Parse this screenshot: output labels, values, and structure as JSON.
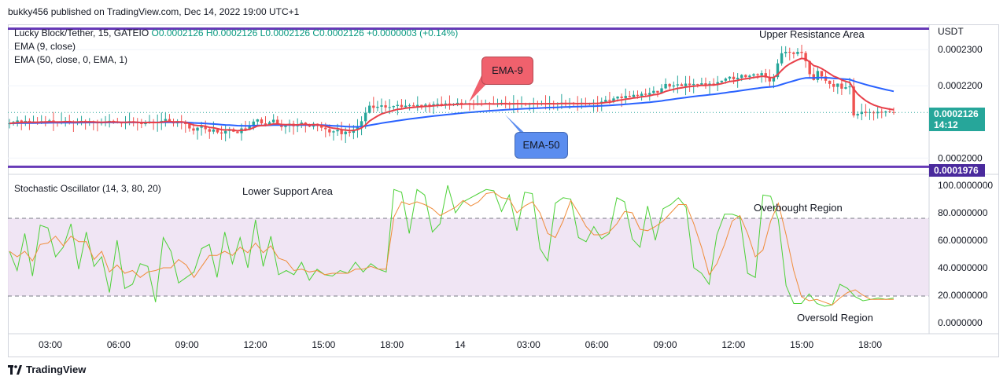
{
  "header": {
    "publisher_line": "bukky456 published on TradingView.com, Dec 14, 2022 19:00 UTC+1"
  },
  "legend": {
    "symbol": "Lucky Block/Tether, 15, GATEIO",
    "ohlc": "O0.0002126  H0.0002126  L0.0002126  C0.0002126  +0.0000003 (+0.14%)",
    "ema9": "EMA (9, close)",
    "ema50": "EMA (50, close, 0, EMA, 1)",
    "oscillator": "Stochastic Oscillator (14, 3, 80, 20)"
  },
  "price_axis": {
    "currency": "USDT",
    "ticks": [
      "0.0002300",
      "0.0002200",
      "0.0002000"
    ],
    "ticks_values": [
      0.00023,
      0.00022,
      0.0002
    ],
    "last_price": "0.0002126",
    "countdown": "14:12",
    "support_level": "0.0001976"
  },
  "osc_axis": {
    "ticks": [
      "100.0000000",
      "80.0000000",
      "60.0000000",
      "40.0000000",
      "20.0000000",
      "0.0000000"
    ],
    "ticks_values": [
      100,
      80,
      60,
      40,
      20,
      0
    ]
  },
  "time_axis": {
    "labels": [
      "03:00",
      "06:00",
      "09:00",
      "12:00",
      "15:00",
      "18:00",
      "14",
      "03:00",
      "06:00",
      "09:00",
      "12:00",
      "15:00",
      "18:00"
    ]
  },
  "annotations": {
    "upper": "Upper Resistance Area",
    "lower": "Lower Support Area",
    "overbought": "Overbought Region",
    "oversold": "Oversold Region",
    "ema9_callout": "EMA-9",
    "ema50_callout": "EMA-50"
  },
  "footer": {
    "brand": "TradingView"
  },
  "colors": {
    "up": "#26a69a",
    "down": "#ef5350",
    "ema9": "#e8404a",
    "ema50": "#2962ff",
    "level": "#673ab7",
    "stoch_k": "#4cd137",
    "stoch_d": "#f08c3a",
    "band": "#ede0f2"
  },
  "chart_data": [
    {
      "type": "candlestick",
      "title": "Lucky Block/Tether, 15, GATEIO",
      "ylim": [
        0.0001955,
        0.000237
      ],
      "ytick_values": [
        0.0002,
        0.00022,
        0.00023
      ],
      "levels": {
        "upper_resistance": 0.0002358,
        "lower_support": 0.0001976
      },
      "last_close": 0.0002126,
      "candles_close": [
        0.0002096,
        0.00021,
        0.0002104,
        0.0002099,
        0.0002103,
        0.0002097,
        0.0002101,
        0.0002098,
        0.0002102,
        0.00021,
        0.0002104,
        0.0002099,
        0.0002098,
        0.0002101,
        0.0002103,
        0.00021,
        0.0002097,
        0.0002099,
        0.0002103,
        0.0002098,
        0.0002102,
        0.00021,
        0.0002096,
        0.0002098,
        0.0002101,
        0.0002103,
        0.00021,
        0.0002098,
        0.0002096,
        0.0002099,
        0.0002102,
        0.00021,
        0.0002097,
        0.0002094,
        0.0002098,
        0.0002101,
        0.0002097,
        0.0002099,
        0.0002103,
        0.0002108,
        0.0002101,
        0.0002096,
        0.0002102,
        0.0002098,
        0.0002094,
        0.0002082,
        0.0002076,
        0.0002084,
        0.0002089,
        0.000208,
        0.0002073,
        0.0002079,
        0.0002071,
        0.0002068,
        0.0002075,
        0.000208,
        0.0002073,
        0.0002069,
        0.0002082,
        0.0002078,
        0.000209,
        0.0002101,
        0.0002107,
        0.0002096,
        0.0002091,
        0.0002099,
        0.0002106,
        0.0002094,
        0.0002086,
        0.000209,
        0.0002095,
        0.0002088,
        0.0002092,
        0.0002098,
        0.0002093,
        0.0002087,
        0.0002095,
        0.0002089,
        0.0002084,
        0.000208,
        0.0002071,
        0.0002074,
        0.0002078,
        0.0002066,
        0.0002073,
        0.000207,
        0.0002079,
        0.0002088,
        0.0002102,
        0.0002125,
        0.0002145,
        0.0002139,
        0.0002142,
        0.0002146,
        0.000214,
        0.0002141,
        0.0002144,
        0.0002147,
        0.0002141,
        0.0002145,
        0.0002146,
        0.0002143,
        0.0002147,
        0.0002144,
        0.0002148,
        0.0002145,
        0.0002149,
        0.000215,
        0.0002147,
        0.0002151,
        0.0002148,
        0.000215,
        0.0002153,
        0.0002149,
        0.0002152,
        0.000215,
        0.0002148,
        0.0002151,
        0.0002149,
        0.0002152,
        0.000215,
        0.0002148,
        0.0002151,
        0.0002153,
        0.000215,
        0.0002148,
        0.0002152,
        0.000215,
        0.0002151,
        0.0002149,
        0.000215,
        0.0002152,
        0.0002149,
        0.0002151,
        0.000215,
        0.0002152,
        0.0002149,
        0.0002151,
        0.0002153,
        0.000215,
        0.0002152,
        0.0002151,
        0.0002149,
        0.0002152,
        0.000215,
        0.0002151,
        0.0002153,
        0.0002151,
        0.0002156,
        0.0002161,
        0.0002158,
        0.0002165,
        0.000217,
        0.0002166,
        0.0002172,
        0.0002169,
        0.0002175,
        0.0002172,
        0.0002178,
        0.0002175,
        0.000218,
        0.0002186,
        0.0002181,
        0.0002193,
        0.0002205,
        0.0002198,
        0.0002201,
        0.0002204,
        0.0002199,
        0.0002206,
        0.0002202,
        0.0002205,
        0.0002203,
        0.0002207,
        0.0002201,
        0.0002206,
        0.0002203,
        0.000221,
        0.0002214,
        0.000222,
        0.0002225,
        0.0002218,
        0.0002222,
        0.000223,
        0.0002224,
        0.0002228,
        0.0002232,
        0.0002229,
        0.0002235,
        0.0002223,
        0.0002212,
        0.0002224,
        0.0002262,
        0.000229,
        0.0002294,
        0.0002292,
        0.0002288,
        0.0002294,
        0.0002291,
        0.0002268,
        0.0002232,
        0.0002216,
        0.0002241,
        0.0002226,
        0.0002214,
        0.0002205,
        0.0002197,
        0.0002206,
        0.0002192,
        0.0002196,
        0.0002198,
        0.0002118,
        0.0002122,
        0.0002128,
        0.0002125,
        0.0002127,
        0.0002124,
        0.0002128,
        0.0002126,
        0.0002129,
        0.0002127,
        0.0002126
      ]
    },
    {
      "type": "line",
      "title": "Stochastic Oscillator (14, 3, 80, 20)",
      "ylim": [
        -8,
        108
      ],
      "bands": {
        "upper": 80,
        "lower": 20
      },
      "series": [
        {
          "name": "%K",
          "values": [
            52,
            38,
            65,
            34,
            71,
            69,
            48,
            55,
            72,
            39,
            66,
            41,
            48,
            22,
            60,
            25,
            28,
            43,
            41,
            15,
            62,
            52,
            29,
            33,
            37,
            54,
            57,
            33,
            66,
            43,
            62,
            40,
            75,
            41,
            63,
            35,
            38,
            35,
            44,
            31,
            39,
            35,
            34,
            38,
            36,
            44,
            37,
            43,
            39,
            37,
            97,
            95,
            65,
            97,
            93,
            66,
            72,
            100,
            80,
            88,
            91,
            94,
            97,
            96,
            81,
            93,
            67,
            95,
            94,
            54,
            45,
            87,
            91,
            90,
            62,
            59,
            70,
            61,
            65,
            91,
            88,
            61,
            55,
            85,
            60,
            83,
            86,
            91,
            84,
            40,
            36,
            28,
            64,
            79,
            79,
            77,
            36,
            33,
            93,
            92,
            75,
            27,
            14,
            14,
            21,
            14,
            12,
            13,
            28,
            25,
            19,
            16,
            17,
            18,
            17,
            18
          ]
        },
        {
          "name": "%D",
          "values": [
            52,
            48,
            52,
            45,
            57,
            58,
            63,
            56,
            63,
            59,
            59,
            46,
            52,
            37,
            42,
            36,
            38,
            33,
            37,
            38,
            40,
            40,
            46,
            42,
            33,
            41,
            49,
            49,
            52,
            49,
            55,
            51,
            58,
            51,
            56,
            47,
            45,
            38,
            39,
            37,
            38,
            35,
            36,
            36,
            36,
            39,
            39,
            41,
            39,
            39,
            77,
            88,
            86,
            88,
            86,
            83,
            78,
            81,
            84,
            89,
            85,
            88,
            94,
            95,
            91,
            90,
            80,
            85,
            88,
            80,
            65,
            62,
            74,
            89,
            80,
            70,
            64,
            64,
            66,
            72,
            81,
            80,
            68,
            67,
            70,
            74,
            80,
            86,
            86,
            72,
            55,
            35,
            43,
            57,
            74,
            78,
            65,
            48,
            53,
            74,
            87,
            64,
            38,
            19,
            16,
            17,
            15,
            13,
            18,
            22,
            24,
            20,
            17,
            17,
            17,
            17
          ]
        }
      ]
    }
  ]
}
